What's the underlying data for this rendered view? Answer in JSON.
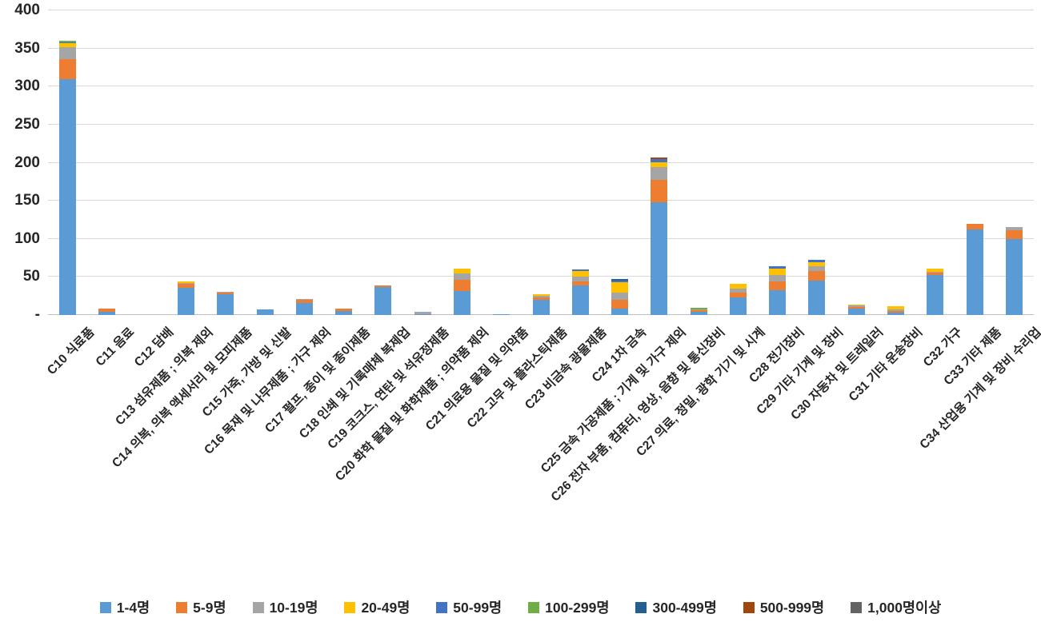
{
  "chart_data": {
    "type": "bar",
    "stacked": true,
    "title": "",
    "xlabel": "",
    "ylabel": "",
    "ylim": [
      0,
      400
    ],
    "ytick_interval": 50,
    "ytick_labels_bottom_up": [
      "-",
      "50",
      "100",
      "150",
      "200",
      "250",
      "300",
      "350",
      "400"
    ],
    "grid": true,
    "legend_position": "bottom",
    "categories": [
      "C10 식료품",
      "C11 음료",
      "C12 담배",
      "C13 섬유제품 ; 의복 제외",
      "C14 의복, 의복 액세서리 및 모피제품",
      "C15 가죽, 가방 및 신발",
      "C16 목재 및 나무제품 ; 가구 제외",
      "C17 펄프, 종이 및 종이제품",
      "C18 인쇄 및 기록매체 복제업",
      "C19 코크스, 연탄 및 석유정제품",
      "C20 화학 물질 및 화학제품 ; 의약품 제외",
      "C21 의료용 물질 및 의약품",
      "C22 고무 및 플라스틱제품",
      "C23 비금속 광물제품",
      "C24 1차 금속",
      "C25 금속 가공제품 ; 기계 및 가구 제외",
      "C26 전자 부품, 컴퓨터, 영상, 음향 및 통신장비",
      "C27 의료, 정밀, 광학 기기 및 시계",
      "C28 전기장비",
      "C29 기타 기계 및 장비",
      "C30 자동차 및 트레일러",
      "C31 기타 운송장비",
      "C32 가구",
      "C33 기타 제품",
      "C34 산업용 기계 및 장비 수리업"
    ],
    "series": [
      {
        "name": "1-4명",
        "color": "#5B9BD5",
        "values": [
          310,
          4,
          0,
          36,
          27,
          7,
          16,
          5,
          37,
          1.5,
          32,
          1,
          20,
          39,
          8,
          148,
          4,
          23,
          33,
          45,
          8,
          3,
          52,
          112,
          100
        ]
      },
      {
        "name": "5-9명",
        "color": "#ED7D31",
        "values": [
          26,
          4,
          0,
          5,
          2,
          0,
          4,
          3,
          2,
          0,
          14,
          0,
          3,
          5,
          12,
          29,
          2,
          6,
          11,
          13,
          2.5,
          2,
          4,
          8,
          11
        ]
      },
      {
        "name": "10-19명",
        "color": "#A5A5A5",
        "values": [
          16,
          0,
          0,
          1,
          1,
          0,
          1,
          0,
          0,
          2.5,
          9,
          0,
          2,
          6,
          9,
          17,
          1.5,
          6,
          9,
          6,
          2,
          2,
          1,
          0,
          4
        ]
      },
      {
        "name": "20-49명",
        "color": "#FFC000",
        "values": [
          5,
          0,
          0,
          2,
          0,
          0,
          0,
          0,
          0,
          0,
          6,
          0,
          2,
          8,
          14,
          7,
          0,
          6,
          8,
          5,
          1.5,
          5,
          4,
          0,
          0
        ]
      },
      {
        "name": "50-99명",
        "color": "#4472C4",
        "values": [
          1.5,
          0,
          0,
          0,
          0,
          0,
          0,
          0,
          0,
          0,
          0,
          0,
          0,
          2,
          2,
          4,
          0,
          0,
          3,
          3,
          0,
          0,
          0,
          0,
          0
        ]
      },
      {
        "name": "100-299명",
        "color": "#70AD47",
        "values": [
          1.5,
          0,
          0,
          0,
          0,
          0,
          0,
          0,
          0,
          0,
          0,
          0,
          0,
          0,
          0,
          0,
          1.5,
          0,
          0,
          0,
          0,
          0,
          0,
          0,
          0
        ]
      },
      {
        "name": "300-499명",
        "color": "#255E91",
        "values": [
          0,
          0,
          0,
          0,
          0,
          0,
          0,
          0,
          0,
          0,
          0,
          0,
          0,
          0,
          2,
          0,
          0,
          0,
          0,
          0,
          0,
          0,
          0,
          0,
          0
        ]
      },
      {
        "name": "500-999명",
        "color": "#9E480E",
        "values": [
          0,
          0,
          0,
          0,
          0,
          0,
          0,
          0,
          0,
          0,
          0,
          0,
          0,
          0,
          0,
          2,
          0,
          0,
          0,
          0,
          0,
          0,
          0,
          0,
          0
        ]
      },
      {
        "name": "1,000명이상",
        "color": "#636363",
        "values": [
          0,
          0,
          0,
          0,
          0,
          0,
          0,
          0,
          0,
          0,
          0,
          0,
          0,
          0,
          0,
          0,
          0,
          0,
          0,
          0,
          0,
          0,
          0,
          0,
          0
        ]
      }
    ]
  }
}
